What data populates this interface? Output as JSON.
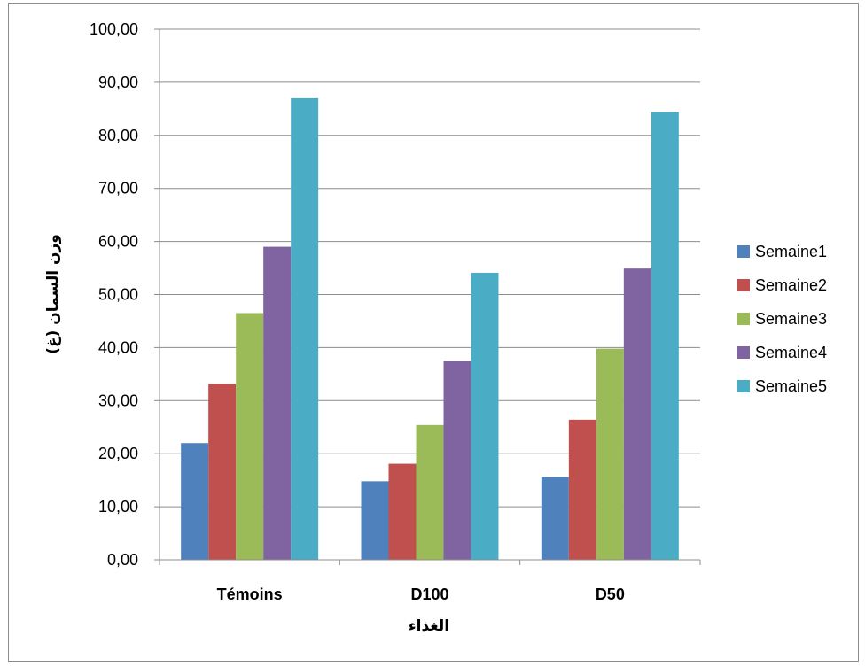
{
  "chart_data": {
    "type": "bar",
    "title": "",
    "xlabel": "الغذاء",
    "ylabel": "وزن السمان (غ)",
    "categories": [
      "Témoins",
      "D100",
      "D50"
    ],
    "ylim": [
      0,
      100
    ],
    "yticks": [
      "0,00",
      "10,00",
      "20,00",
      "30,00",
      "40,00",
      "50,00",
      "60,00",
      "70,00",
      "80,00",
      "90,00",
      "100,00"
    ],
    "grid": true,
    "legend_position": "right",
    "series": [
      {
        "name": "Semaine1",
        "color": "#4f81bd",
        "values": [
          22.0,
          14.8,
          15.6
        ]
      },
      {
        "name": "Semaine2",
        "color": "#c0504d",
        "values": [
          33.2,
          18.1,
          26.4
        ]
      },
      {
        "name": "Semaine3",
        "color": "#9bbb59",
        "values": [
          46.5,
          25.4,
          39.8
        ]
      },
      {
        "name": "Semaine4",
        "color": "#8064a2",
        "values": [
          59.0,
          37.5,
          54.9
        ]
      },
      {
        "name": "Semaine5",
        "color": "#4bacc6",
        "values": [
          87.0,
          54.1,
          84.4
        ]
      }
    ]
  }
}
